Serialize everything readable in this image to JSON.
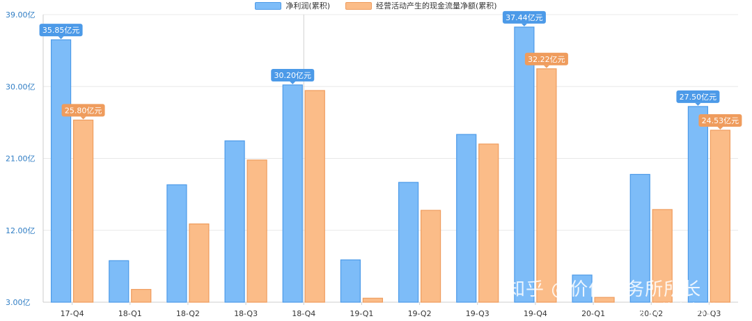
{
  "chart_data": {
    "type": "bar",
    "categories": [
      "17-Q4",
      "18-Q1",
      "18-Q2",
      "18-Q3",
      "18-Q4",
      "19-Q1",
      "19-Q2",
      "19-Q3",
      "19-Q4",
      "20-Q1",
      "20-Q2",
      "20-Q3"
    ],
    "series": [
      {
        "name": "净利润(累积)",
        "color": "#7dbcf8",
        "stroke": "#4c9ae8",
        "values": [
          35.85,
          8.2,
          17.7,
          23.2,
          30.2,
          8.3,
          18.0,
          24.0,
          37.44,
          6.4,
          19.0,
          27.5
        ]
      },
      {
        "name": "经营活动产生的现金流量净额(累积)",
        "color": "#fbbc88",
        "stroke": "#ef9c5d",
        "values": [
          25.8,
          4.6,
          12.8,
          20.8,
          29.5,
          3.5,
          14.5,
          22.8,
          32.22,
          3.6,
          14.6,
          24.53
        ]
      }
    ],
    "ylim": [
      3,
      39
    ],
    "yticks": [
      {
        "value": 3,
        "label": "3.00亿"
      },
      {
        "value": 12,
        "label": "12.00亿"
      },
      {
        "value": 21,
        "label": "21.00亿"
      },
      {
        "value": 30,
        "label": "30.00亿"
      },
      {
        "value": 39,
        "label": "39.00亿"
      }
    ],
    "data_labels": [
      {
        "series": 0,
        "index": 0,
        "text": "35.85亿元"
      },
      {
        "series": 1,
        "index": 0,
        "text": "25.80亿元"
      },
      {
        "series": 0,
        "index": 4,
        "text": "30.20亿元"
      },
      {
        "series": 0,
        "index": 8,
        "text": "37.44亿元"
      },
      {
        "series": 1,
        "index": 8,
        "text": "32.22亿元"
      },
      {
        "series": 0,
        "index": 11,
        "text": "27.50亿元"
      },
      {
        "series": 1,
        "index": 11,
        "text": "24.53亿元"
      }
    ],
    "legend_position": "top-center",
    "grid": true
  },
  "watermarks": {
    "main": "知乎 @价值事务所所长",
    "sub": "@价值事务所"
  },
  "colors": {
    "axis_text": "#2f7dc4",
    "grid": "#e8e8e8",
    "cursor_line": "#d0d0d0"
  }
}
